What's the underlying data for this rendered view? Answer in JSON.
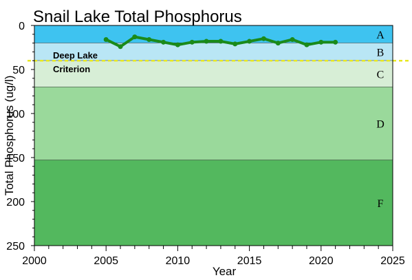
{
  "chart_data": {
    "type": "line",
    "title": "Snail Lake Total Phosphorus",
    "xlabel": "Year",
    "ylabel": "Total Phosphorus (ug/l)",
    "xlim": [
      2000,
      2025
    ],
    "ylim": [
      0,
      250
    ],
    "y_inverted": true,
    "x_ticks": [
      2000,
      2005,
      2010,
      2015,
      2020,
      2025
    ],
    "y_ticks": [
      0,
      50,
      100,
      150,
      200,
      250
    ],
    "grid": false,
    "series": [
      {
        "name": "",
        "color": "#1a8a1a",
        "x": [
          2005,
          2006,
          2007,
          2008,
          2009,
          2010,
          2011,
          2012,
          2013,
          2014,
          2015,
          2016,
          2017,
          2018,
          2019,
          2020,
          2021
        ],
        "y": [
          16,
          24,
          13,
          16,
          19,
          22,
          19,
          18,
          18,
          21,
          18,
          15,
          20,
          16,
          22,
          19,
          19
        ]
      }
    ],
    "zones": [
      {
        "label": "A",
        "from": 0,
        "to": 20,
        "color": "#3ec3f0"
      },
      {
        "label": "B",
        "from": 20,
        "to": 40,
        "color": "#b9e6f5"
      },
      {
        "label": "C",
        "from": 40,
        "to": 70,
        "color": "#d7eed6"
      },
      {
        "label": "D",
        "from": 70,
        "to": 153,
        "color": "#9ad99b"
      },
      {
        "label": "F",
        "from": 153,
        "to": 250,
        "color": "#53b85e"
      }
    ],
    "criterion": {
      "label_line1": "Deep Lake",
      "label_line2": "Criterion",
      "value": 40,
      "color": "#e8e820"
    }
  }
}
